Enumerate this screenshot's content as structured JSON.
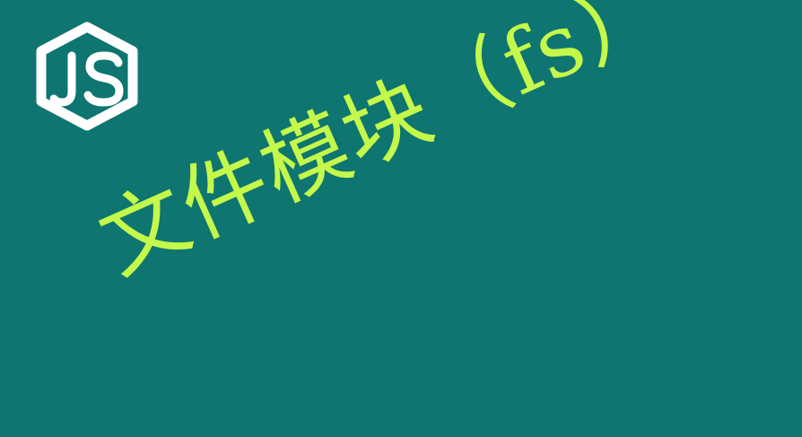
{
  "logo": {
    "text": "JS",
    "icon": "nodejs-hexagon-logo",
    "color": "#ffffff"
  },
  "headline": {
    "text": "文件模块（fs）",
    "color": "#c4f84a"
  },
  "background_color": "#0e7570"
}
